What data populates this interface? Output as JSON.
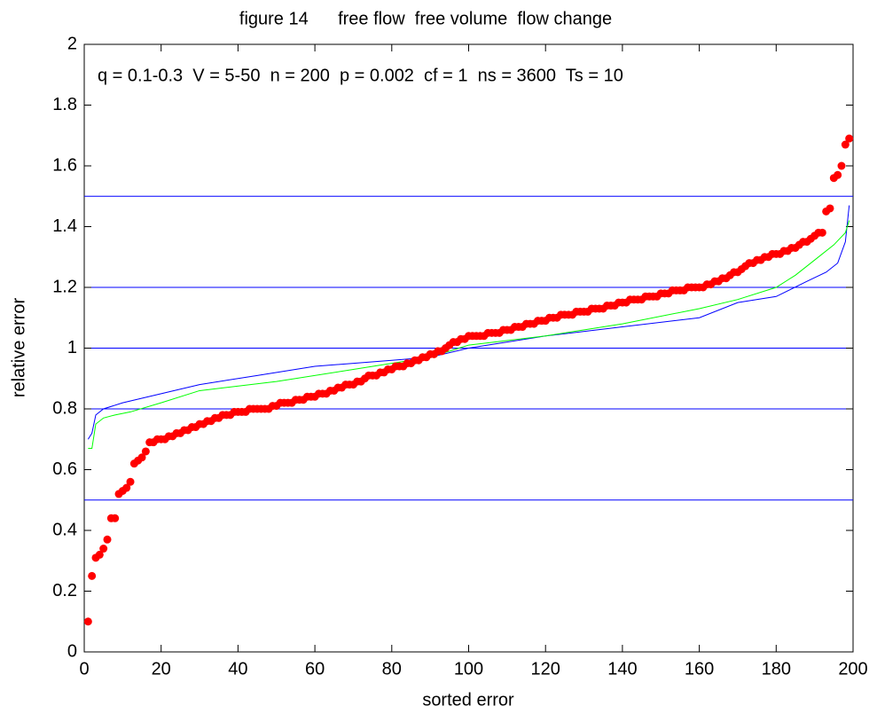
{
  "chart_data": {
    "type": "scatter",
    "title": "figure 14      free flow  free volume  flow change",
    "annotation": "q = 0.1-0.3  V = 5-50  n = 200  p = 0.002  cf = 1  ns = 3600  Ts = 10",
    "x_label": "sorted error",
    "y_label": "relative error",
    "xlim": [
      0,
      200
    ],
    "ylim": [
      0,
      2
    ],
    "xticks": [
      0,
      20,
      40,
      60,
      80,
      100,
      120,
      140,
      160,
      180,
      200
    ],
    "yticks": [
      0,
      0.2,
      0.4,
      0.6,
      0.8,
      1,
      1.2,
      1.4,
      1.6,
      1.8,
      2
    ],
    "hlines": [
      0.5,
      0.8,
      1,
      1.2,
      1.5
    ],
    "hline_color": "#0000ff",
    "series": [
      {
        "type": "scatter",
        "color": "#ff0000",
        "x": [
          1,
          2,
          3,
          4,
          5,
          6,
          7,
          8,
          9,
          10,
          11,
          12,
          13,
          14,
          15,
          16,
          17,
          18,
          19,
          20,
          21,
          22,
          23,
          24,
          25,
          26,
          27,
          28,
          29,
          30,
          31,
          32,
          33,
          34,
          35,
          36,
          37,
          38,
          39,
          40,
          41,
          42,
          43,
          44,
          45,
          46,
          47,
          48,
          49,
          50,
          51,
          52,
          53,
          54,
          55,
          56,
          57,
          58,
          59,
          60,
          61,
          62,
          63,
          64,
          65,
          66,
          67,
          68,
          69,
          70,
          71,
          72,
          73,
          74,
          75,
          76,
          77,
          78,
          79,
          80,
          81,
          82,
          83,
          84,
          85,
          86,
          87,
          88,
          89,
          90,
          91,
          92,
          93,
          94,
          95,
          96,
          97,
          98,
          99,
          100,
          101,
          102,
          103,
          104,
          105,
          106,
          107,
          108,
          109,
          110,
          111,
          112,
          113,
          114,
          115,
          116,
          117,
          118,
          119,
          120,
          121,
          122,
          123,
          124,
          125,
          126,
          127,
          128,
          129,
          130,
          131,
          132,
          133,
          134,
          135,
          136,
          137,
          138,
          139,
          140,
          141,
          142,
          143,
          144,
          145,
          146,
          147,
          148,
          149,
          150,
          151,
          152,
          153,
          154,
          155,
          156,
          157,
          158,
          159,
          160,
          161,
          162,
          163,
          164,
          165,
          166,
          167,
          168,
          169,
          170,
          171,
          172,
          173,
          174,
          175,
          176,
          177,
          178,
          179,
          180,
          181,
          182,
          183,
          184,
          185,
          186,
          187,
          188,
          189,
          190,
          191,
          192,
          193,
          194,
          195,
          196,
          197,
          198,
          199
        ],
        "values": [
          0.1,
          0.25,
          0.31,
          0.32,
          0.34,
          0.37,
          0.44,
          0.44,
          0.52,
          0.53,
          0.54,
          0.56,
          0.62,
          0.63,
          0.64,
          0.66,
          0.69,
          0.69,
          0.7,
          0.7,
          0.7,
          0.71,
          0.71,
          0.72,
          0.72,
          0.73,
          0.73,
          0.74,
          0.74,
          0.75,
          0.75,
          0.76,
          0.76,
          0.77,
          0.77,
          0.78,
          0.78,
          0.78,
          0.79,
          0.79,
          0.79,
          0.79,
          0.8,
          0.8,
          0.8,
          0.8,
          0.8,
          0.8,
          0.81,
          0.81,
          0.82,
          0.82,
          0.82,
          0.82,
          0.83,
          0.83,
          0.83,
          0.84,
          0.84,
          0.84,
          0.85,
          0.85,
          0.85,
          0.86,
          0.86,
          0.87,
          0.87,
          0.88,
          0.88,
          0.88,
          0.89,
          0.89,
          0.9,
          0.91,
          0.91,
          0.91,
          0.92,
          0.92,
          0.93,
          0.93,
          0.94,
          0.94,
          0.94,
          0.95,
          0.95,
          0.96,
          0.96,
          0.97,
          0.97,
          0.98,
          0.98,
          0.99,
          0.99,
          1.0,
          1.01,
          1.02,
          1.02,
          1.03,
          1.03,
          1.04,
          1.04,
          1.04,
          1.04,
          1.04,
          1.05,
          1.05,
          1.05,
          1.05,
          1.06,
          1.06,
          1.06,
          1.07,
          1.07,
          1.07,
          1.08,
          1.08,
          1.08,
          1.09,
          1.09,
          1.09,
          1.1,
          1.1,
          1.1,
          1.11,
          1.11,
          1.11,
          1.11,
          1.12,
          1.12,
          1.12,
          1.12,
          1.13,
          1.13,
          1.13,
          1.13,
          1.14,
          1.14,
          1.14,
          1.15,
          1.15,
          1.15,
          1.16,
          1.16,
          1.16,
          1.16,
          1.17,
          1.17,
          1.17,
          1.17,
          1.18,
          1.18,
          1.18,
          1.19,
          1.19,
          1.19,
          1.19,
          1.2,
          1.2,
          1.2,
          1.2,
          1.2,
          1.21,
          1.21,
          1.22,
          1.22,
          1.23,
          1.23,
          1.24,
          1.25,
          1.25,
          1.26,
          1.27,
          1.28,
          1.28,
          1.29,
          1.29,
          1.3,
          1.3,
          1.31,
          1.31,
          1.31,
          1.32,
          1.32,
          1.33,
          1.33,
          1.34,
          1.35,
          1.35,
          1.36,
          1.37,
          1.38,
          1.38,
          1.45,
          1.46,
          1.56,
          1.57,
          1.6,
          1.67,
          1.69
        ]
      },
      {
        "type": "line",
        "color": "#00ff00",
        "x": [
          1,
          2,
          3,
          5,
          8,
          12,
          20,
          30,
          50,
          70,
          90,
          100,
          120,
          140,
          160,
          170,
          180,
          185,
          190,
          195,
          198,
          199
        ],
        "values": [
          0.67,
          0.67,
          0.75,
          0.77,
          0.78,
          0.79,
          0.82,
          0.86,
          0.89,
          0.93,
          0.97,
          1.01,
          1.04,
          1.08,
          1.13,
          1.16,
          1.2,
          1.24,
          1.29,
          1.34,
          1.38,
          1.42
        ]
      },
      {
        "type": "line",
        "color": "#0000ff",
        "x": [
          1,
          2,
          3,
          5,
          10,
          20,
          30,
          45,
          60,
          80,
          90,
          100,
          120,
          140,
          160,
          170,
          180,
          188,
          193,
          196,
          198,
          199
        ],
        "values": [
          0.7,
          0.72,
          0.78,
          0.8,
          0.82,
          0.85,
          0.88,
          0.91,
          0.94,
          0.96,
          0.97,
          1.0,
          1.04,
          1.07,
          1.1,
          1.15,
          1.17,
          1.22,
          1.25,
          1.28,
          1.35,
          1.47
        ]
      }
    ]
  }
}
